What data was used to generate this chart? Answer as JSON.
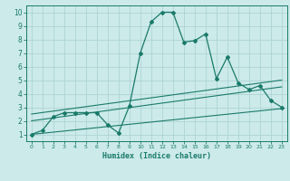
{
  "xlabel": "Humidex (Indice chaleur)",
  "xlim": [
    -0.5,
    23.5
  ],
  "ylim": [
    0.5,
    10.5
  ],
  "yticks": [
    1,
    2,
    3,
    4,
    5,
    6,
    7,
    8,
    9,
    10
  ],
  "xticks": [
    0,
    1,
    2,
    3,
    4,
    5,
    6,
    7,
    8,
    9,
    10,
    11,
    12,
    13,
    14,
    15,
    16,
    17,
    18,
    19,
    20,
    21,
    22,
    23
  ],
  "bg_color": "#cceaea",
  "grid_color": "#aed4d4",
  "line_color": "#1a7a6a",
  "main_line_x": [
    0,
    1,
    2,
    3,
    4,
    5,
    6,
    7,
    8,
    9,
    10,
    11,
    12,
    13,
    14,
    15,
    16,
    17,
    18,
    19,
    20,
    21,
    22,
    23
  ],
  "main_line_y": [
    1.0,
    1.3,
    2.3,
    2.6,
    2.6,
    2.6,
    2.6,
    1.7,
    1.1,
    3.1,
    7.0,
    9.3,
    10.0,
    10.0,
    7.8,
    7.9,
    8.4,
    5.1,
    6.7,
    4.8,
    4.3,
    4.6,
    3.5,
    3.0
  ],
  "reg_line1_x": [
    0,
    23
  ],
  "reg_line1_y": [
    1.0,
    2.9
  ],
  "reg_line2_x": [
    0,
    23
  ],
  "reg_line2_y": [
    2.0,
    4.5
  ],
  "reg_line3_x": [
    0,
    23
  ],
  "reg_line3_y": [
    2.5,
    5.0
  ]
}
